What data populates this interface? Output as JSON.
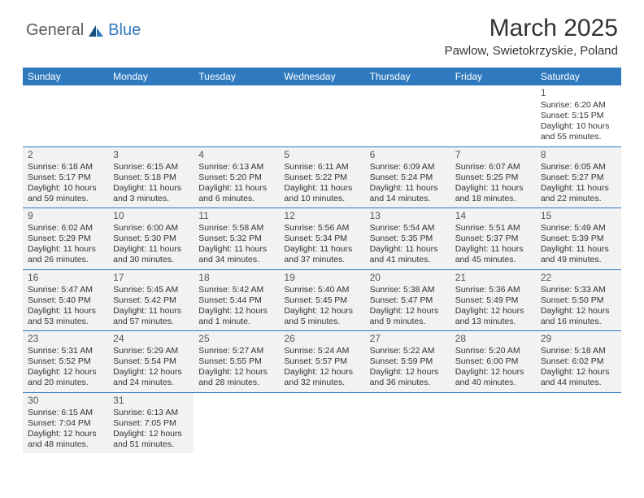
{
  "brand": {
    "part1": "General",
    "part2": "Blue"
  },
  "title": "March 2025",
  "location": "Pawlow, Swietokrzyskie, Poland",
  "columns": [
    "Sunday",
    "Monday",
    "Tuesday",
    "Wednesday",
    "Thursday",
    "Friday",
    "Saturday"
  ],
  "colors": {
    "header_bg": "#2f7abf",
    "header_text": "#ffffff",
    "cell_bg": "#f2f2f2",
    "border": "#2f7abf",
    "brand_gray": "#5a5a5a",
    "brand_blue": "#2f7abf"
  },
  "weeks": [
    [
      null,
      null,
      null,
      null,
      null,
      null,
      {
        "n": "1",
        "sr": "Sunrise: 6:20 AM",
        "ss": "Sunset: 5:15 PM",
        "d1": "Daylight: 10 hours",
        "d2": "and 55 minutes."
      }
    ],
    [
      {
        "n": "2",
        "sr": "Sunrise: 6:18 AM",
        "ss": "Sunset: 5:17 PM",
        "d1": "Daylight: 10 hours",
        "d2": "and 59 minutes."
      },
      {
        "n": "3",
        "sr": "Sunrise: 6:15 AM",
        "ss": "Sunset: 5:18 PM",
        "d1": "Daylight: 11 hours",
        "d2": "and 3 minutes."
      },
      {
        "n": "4",
        "sr": "Sunrise: 6:13 AM",
        "ss": "Sunset: 5:20 PM",
        "d1": "Daylight: 11 hours",
        "d2": "and 6 minutes."
      },
      {
        "n": "5",
        "sr": "Sunrise: 6:11 AM",
        "ss": "Sunset: 5:22 PM",
        "d1": "Daylight: 11 hours",
        "d2": "and 10 minutes."
      },
      {
        "n": "6",
        "sr": "Sunrise: 6:09 AM",
        "ss": "Sunset: 5:24 PM",
        "d1": "Daylight: 11 hours",
        "d2": "and 14 minutes."
      },
      {
        "n": "7",
        "sr": "Sunrise: 6:07 AM",
        "ss": "Sunset: 5:25 PM",
        "d1": "Daylight: 11 hours",
        "d2": "and 18 minutes."
      },
      {
        "n": "8",
        "sr": "Sunrise: 6:05 AM",
        "ss": "Sunset: 5:27 PM",
        "d1": "Daylight: 11 hours",
        "d2": "and 22 minutes."
      }
    ],
    [
      {
        "n": "9",
        "sr": "Sunrise: 6:02 AM",
        "ss": "Sunset: 5:29 PM",
        "d1": "Daylight: 11 hours",
        "d2": "and 26 minutes."
      },
      {
        "n": "10",
        "sr": "Sunrise: 6:00 AM",
        "ss": "Sunset: 5:30 PM",
        "d1": "Daylight: 11 hours",
        "d2": "and 30 minutes."
      },
      {
        "n": "11",
        "sr": "Sunrise: 5:58 AM",
        "ss": "Sunset: 5:32 PM",
        "d1": "Daylight: 11 hours",
        "d2": "and 34 minutes."
      },
      {
        "n": "12",
        "sr": "Sunrise: 5:56 AM",
        "ss": "Sunset: 5:34 PM",
        "d1": "Daylight: 11 hours",
        "d2": "and 37 minutes."
      },
      {
        "n": "13",
        "sr": "Sunrise: 5:54 AM",
        "ss": "Sunset: 5:35 PM",
        "d1": "Daylight: 11 hours",
        "d2": "and 41 minutes."
      },
      {
        "n": "14",
        "sr": "Sunrise: 5:51 AM",
        "ss": "Sunset: 5:37 PM",
        "d1": "Daylight: 11 hours",
        "d2": "and 45 minutes."
      },
      {
        "n": "15",
        "sr": "Sunrise: 5:49 AM",
        "ss": "Sunset: 5:39 PM",
        "d1": "Daylight: 11 hours",
        "d2": "and 49 minutes."
      }
    ],
    [
      {
        "n": "16",
        "sr": "Sunrise: 5:47 AM",
        "ss": "Sunset: 5:40 PM",
        "d1": "Daylight: 11 hours",
        "d2": "and 53 minutes."
      },
      {
        "n": "17",
        "sr": "Sunrise: 5:45 AM",
        "ss": "Sunset: 5:42 PM",
        "d1": "Daylight: 11 hours",
        "d2": "and 57 minutes."
      },
      {
        "n": "18",
        "sr": "Sunrise: 5:42 AM",
        "ss": "Sunset: 5:44 PM",
        "d1": "Daylight: 12 hours",
        "d2": "and 1 minute."
      },
      {
        "n": "19",
        "sr": "Sunrise: 5:40 AM",
        "ss": "Sunset: 5:45 PM",
        "d1": "Daylight: 12 hours",
        "d2": "and 5 minutes."
      },
      {
        "n": "20",
        "sr": "Sunrise: 5:38 AM",
        "ss": "Sunset: 5:47 PM",
        "d1": "Daylight: 12 hours",
        "d2": "and 9 minutes."
      },
      {
        "n": "21",
        "sr": "Sunrise: 5:36 AM",
        "ss": "Sunset: 5:49 PM",
        "d1": "Daylight: 12 hours",
        "d2": "and 13 minutes."
      },
      {
        "n": "22",
        "sr": "Sunrise: 5:33 AM",
        "ss": "Sunset: 5:50 PM",
        "d1": "Daylight: 12 hours",
        "d2": "and 16 minutes."
      }
    ],
    [
      {
        "n": "23",
        "sr": "Sunrise: 5:31 AM",
        "ss": "Sunset: 5:52 PM",
        "d1": "Daylight: 12 hours",
        "d2": "and 20 minutes."
      },
      {
        "n": "24",
        "sr": "Sunrise: 5:29 AM",
        "ss": "Sunset: 5:54 PM",
        "d1": "Daylight: 12 hours",
        "d2": "and 24 minutes."
      },
      {
        "n": "25",
        "sr": "Sunrise: 5:27 AM",
        "ss": "Sunset: 5:55 PM",
        "d1": "Daylight: 12 hours",
        "d2": "and 28 minutes."
      },
      {
        "n": "26",
        "sr": "Sunrise: 5:24 AM",
        "ss": "Sunset: 5:57 PM",
        "d1": "Daylight: 12 hours",
        "d2": "and 32 minutes."
      },
      {
        "n": "27",
        "sr": "Sunrise: 5:22 AM",
        "ss": "Sunset: 5:59 PM",
        "d1": "Daylight: 12 hours",
        "d2": "and 36 minutes."
      },
      {
        "n": "28",
        "sr": "Sunrise: 5:20 AM",
        "ss": "Sunset: 6:00 PM",
        "d1": "Daylight: 12 hours",
        "d2": "and 40 minutes."
      },
      {
        "n": "29",
        "sr": "Sunrise: 5:18 AM",
        "ss": "Sunset: 6:02 PM",
        "d1": "Daylight: 12 hours",
        "d2": "and 44 minutes."
      }
    ],
    [
      {
        "n": "30",
        "sr": "Sunrise: 6:15 AM",
        "ss": "Sunset: 7:04 PM",
        "d1": "Daylight: 12 hours",
        "d2": "and 48 minutes."
      },
      {
        "n": "31",
        "sr": "Sunrise: 6:13 AM",
        "ss": "Sunset: 7:05 PM",
        "d1": "Daylight: 12 hours",
        "d2": "and 51 minutes."
      },
      null,
      null,
      null,
      null,
      null
    ]
  ]
}
